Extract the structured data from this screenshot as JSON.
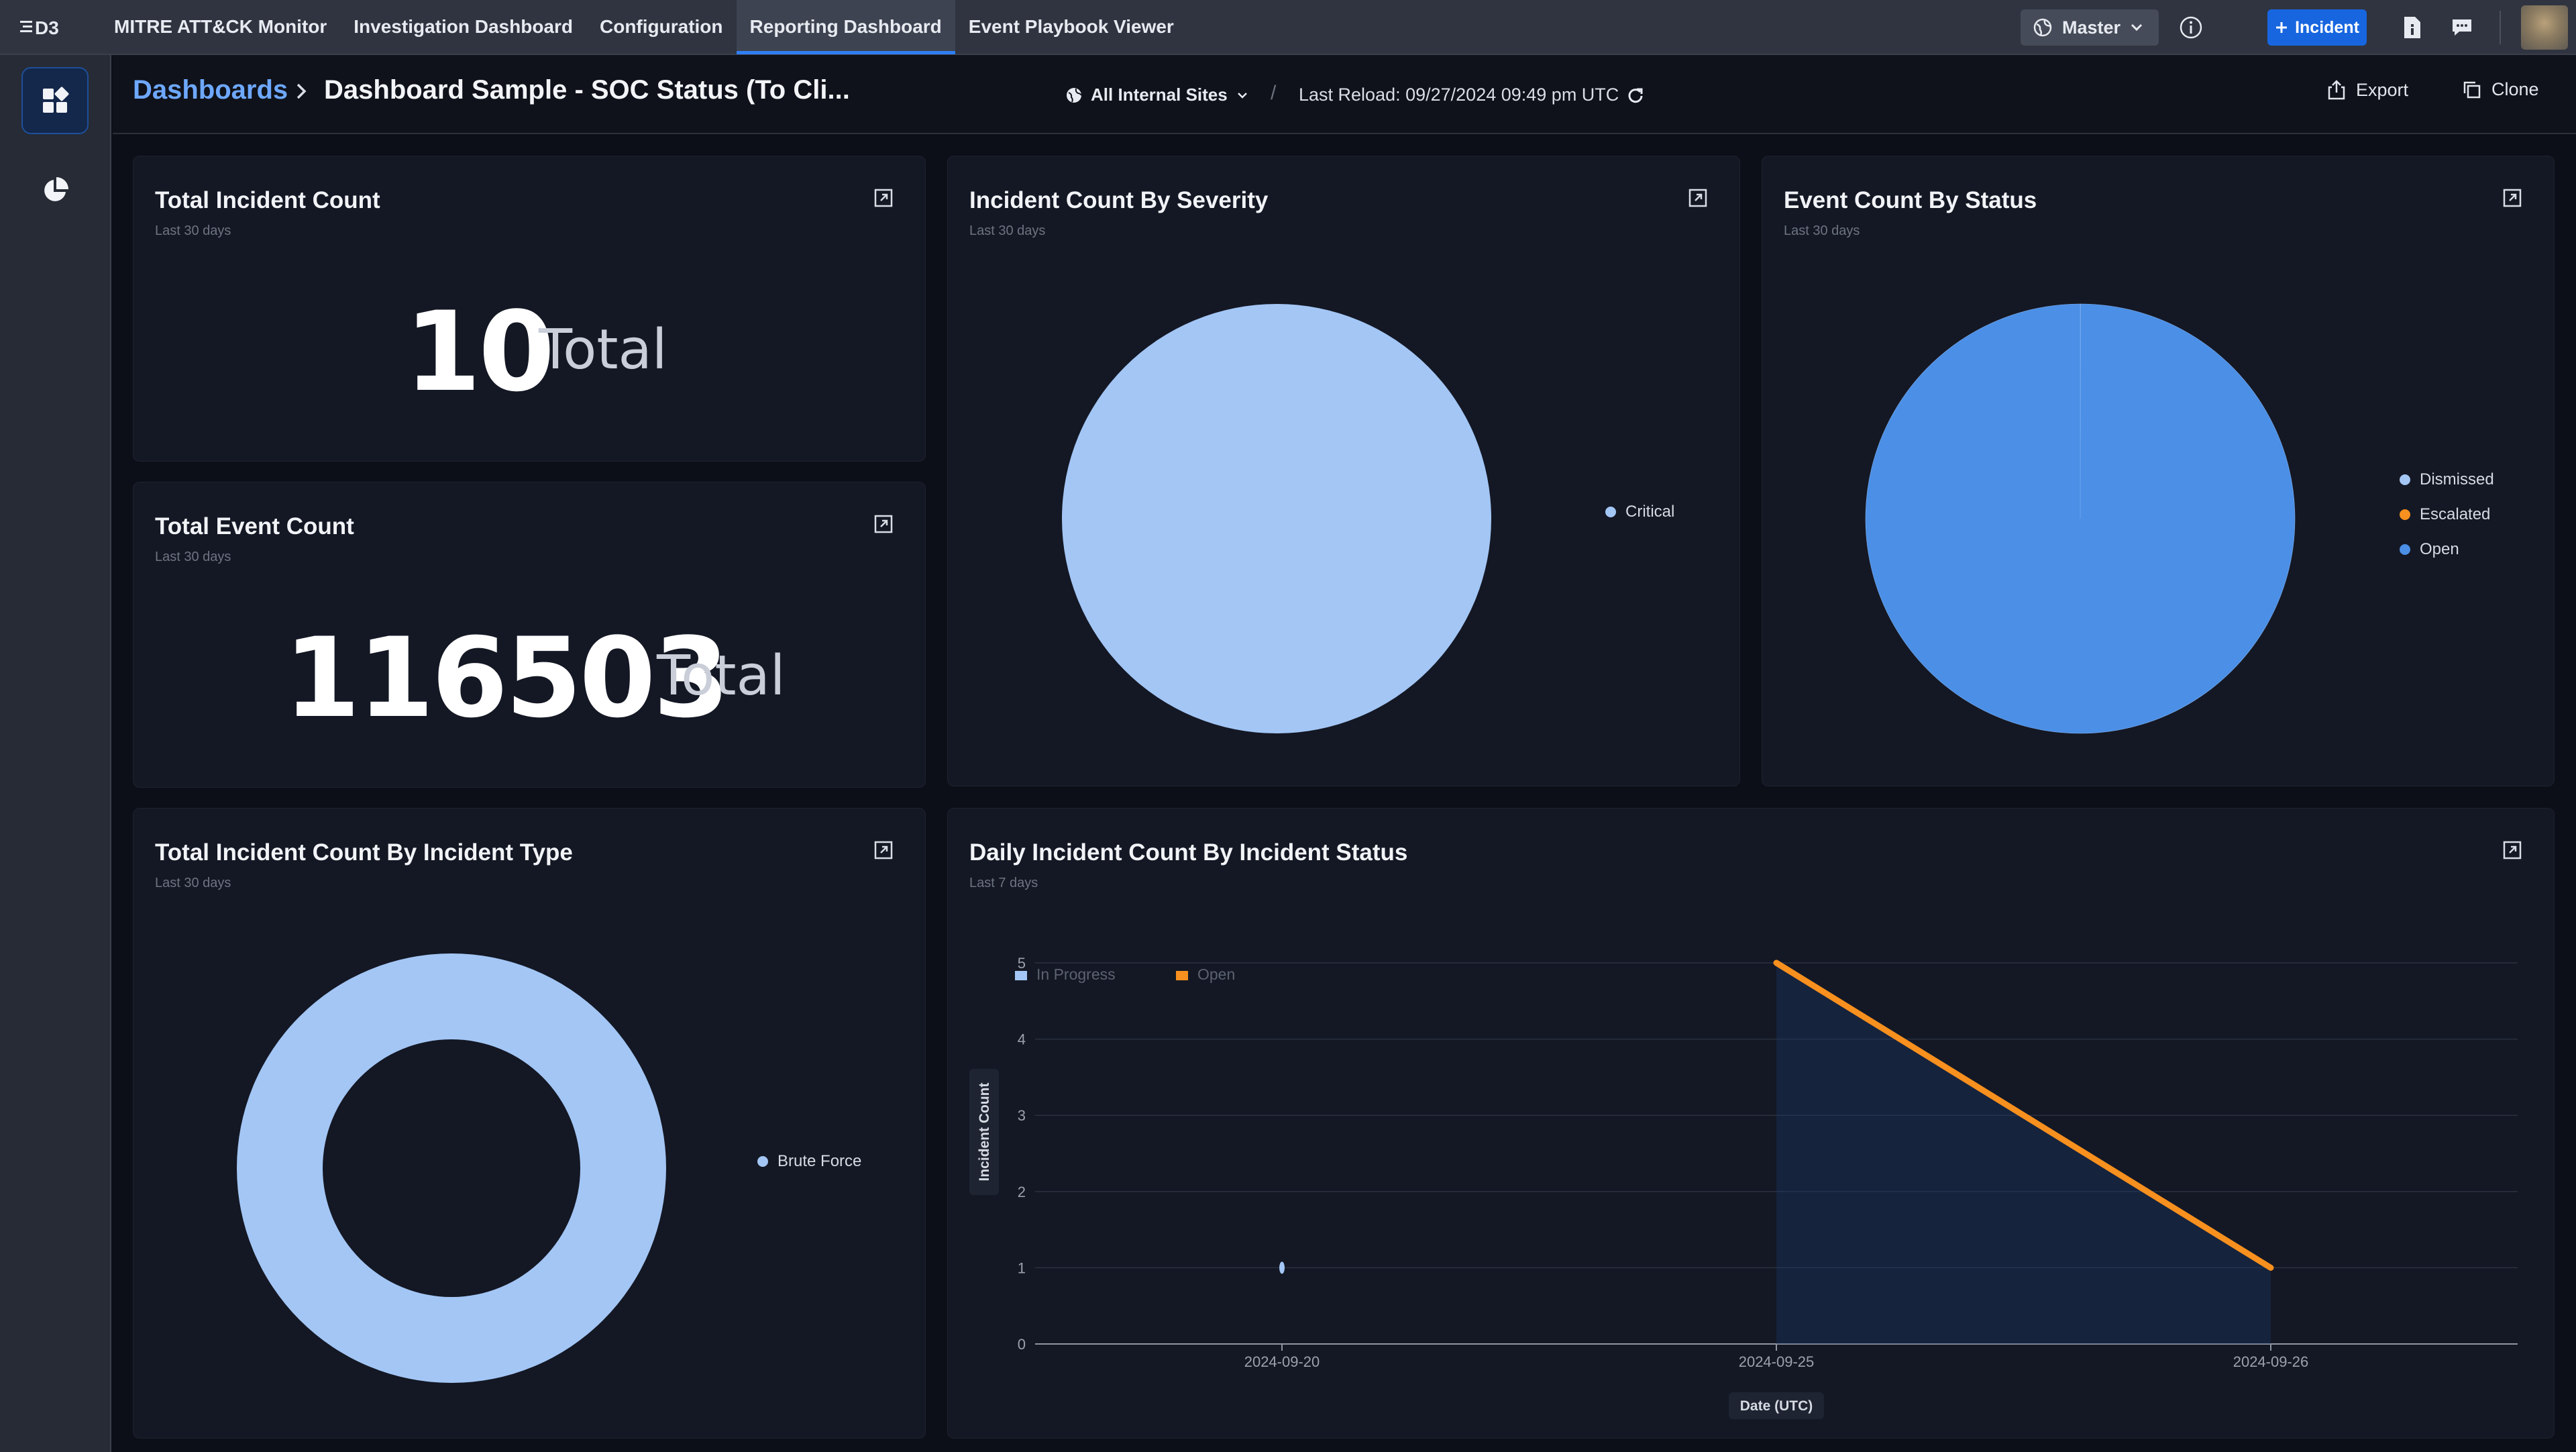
{
  "app": {
    "logo_text": "D3",
    "nav": [
      {
        "label": "MITRE ATT&CK Monitor"
      },
      {
        "label": "Investigation Dashboard"
      },
      {
        "label": "Configuration"
      },
      {
        "label": "Reporting Dashboard",
        "active": true
      },
      {
        "label": "Event Playbook Viewer"
      }
    ],
    "tenant": "Master",
    "incident_button": "Incident"
  },
  "header": {
    "breadcrumb_root": "Dashboards",
    "title": "Dashboard Sample - SOC Status (To Cli...",
    "site_filter": "All Internal Sites",
    "last_reload": "Last Reload: 09/27/2024 09:49 pm UTC",
    "export_label": "Export",
    "clone_label": "Clone"
  },
  "widgets": {
    "total_incident": {
      "title": "Total Incident Count",
      "subtitle": "Last 30 days",
      "value": "10",
      "unit": "Total"
    },
    "total_event": {
      "title": "Total Event Count",
      "subtitle": "Last 30 days",
      "value": "116503",
      "unit": "Total"
    },
    "severity": {
      "title": "Incident Count By Severity",
      "subtitle": "Last 30 days",
      "legend": [
        {
          "label": "Critical",
          "color": "#a3c6f5"
        }
      ]
    },
    "event_status": {
      "title": "Event Count By Status",
      "subtitle": "Last 30 days",
      "legend": [
        {
          "label": "Dismissed",
          "color": "#a3c6f5"
        },
        {
          "label": "Escalated",
          "color": "#f7901e"
        },
        {
          "label": "Open",
          "color": "#4b8fe6"
        }
      ]
    },
    "incident_type": {
      "title": "Total Incident Count By Incident Type",
      "subtitle": "Last 30 days",
      "legend": [
        {
          "label": "Brute Force",
          "color": "#a3c6f5"
        }
      ]
    },
    "daily": {
      "title": "Daily Incident Count By Incident Status",
      "subtitle": "Last 7 days"
    }
  },
  "chart_data": [
    {
      "type": "pie",
      "title": "Incident Count By Severity",
      "categories": [
        "Critical"
      ],
      "values": [
        10
      ],
      "colors": [
        "#a3c6f5"
      ],
      "legend_position": "right"
    },
    {
      "type": "pie",
      "title": "Event Count By Status",
      "categories": [
        "Dismissed",
        "Escalated",
        "Open"
      ],
      "values": [
        30,
        0,
        116473
      ],
      "colors": [
        "#a3c6f5",
        "#f7901e",
        "#4b8fe6"
      ],
      "legend_position": "right"
    },
    {
      "type": "pie",
      "subtype": "donut",
      "title": "Total Incident Count By Incident Type",
      "categories": [
        "Brute Force"
      ],
      "values": [
        10
      ],
      "colors": [
        "#a3c6f5"
      ],
      "legend_position": "right"
    },
    {
      "type": "line",
      "title": "Daily Incident Count By Incident Status",
      "x": [
        "2024-09-20",
        "2024-09-25",
        "2024-09-26"
      ],
      "xlabel": "Date (UTC)",
      "ylabel": "Incident Count",
      "ylim": [
        0,
        5
      ],
      "yticks": [
        0,
        1,
        2,
        3,
        4,
        5
      ],
      "legend_position": "top-left",
      "series": [
        {
          "name": "In Progress",
          "values": [
            1,
            null,
            null
          ],
          "color": "#a3c6f5"
        },
        {
          "name": "Open",
          "values": [
            null,
            5,
            1
          ],
          "color": "#f7901e"
        }
      ]
    }
  ]
}
